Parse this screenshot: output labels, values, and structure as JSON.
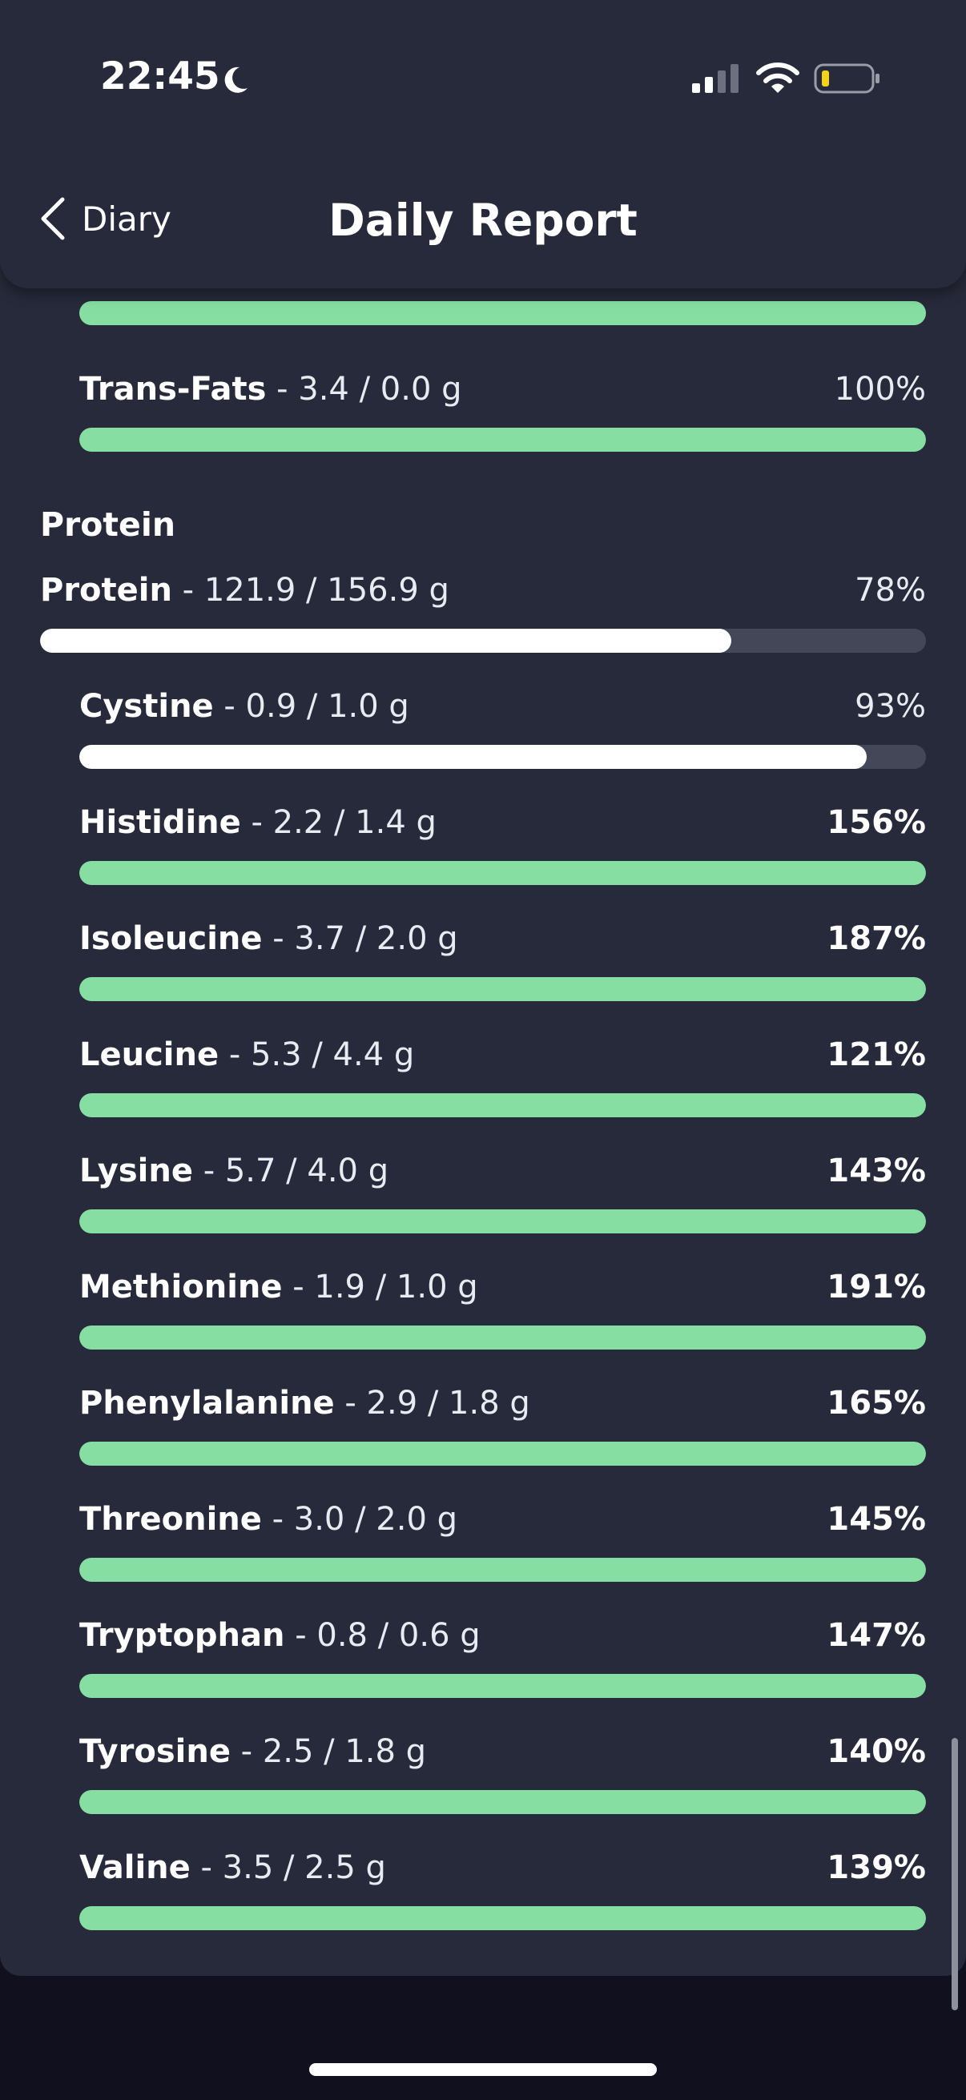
{
  "status_bar": {
    "time": "22:45",
    "moon_icon": "moon-icon",
    "signal_icon": "cellular-signal-icon",
    "wifi_icon": "wifi-icon",
    "battery_icon": "battery-low-icon"
  },
  "header": {
    "back_label": "Diary",
    "title": "Daily Report"
  },
  "colors": {
    "background": "#272a3a",
    "bar_track": "#444758",
    "bar_complete": "#87dea2",
    "bar_partial": "#ffffff"
  },
  "fats_tail": {
    "items": [
      {
        "name": "Trans-Fats",
        "amount": " - 3.4 / 0.0 g",
        "percent": "100%",
        "fill": 1.0,
        "complete": true,
        "bold_percent": false
      }
    ]
  },
  "protein_section": {
    "label": "Protein",
    "total": {
      "name": "Protein",
      "amount": " - 121.9 / 156.9 g",
      "percent": "78%",
      "fill": 0.78,
      "complete": false,
      "bold_percent": false
    },
    "items": [
      {
        "name": "Cystine",
        "amount": " - 0.9 / 1.0 g",
        "percent": "93%",
        "fill": 0.93,
        "complete": false,
        "bold_percent": false
      },
      {
        "name": "Histidine",
        "amount": " - 2.2 / 1.4 g",
        "percent": "156%",
        "fill": 1.0,
        "complete": true,
        "bold_percent": true
      },
      {
        "name": "Isoleucine",
        "amount": " - 3.7 / 2.0 g",
        "percent": "187%",
        "fill": 1.0,
        "complete": true,
        "bold_percent": true
      },
      {
        "name": "Leucine",
        "amount": " - 5.3 / 4.4 g",
        "percent": "121%",
        "fill": 1.0,
        "complete": true,
        "bold_percent": true
      },
      {
        "name": "Lysine",
        "amount": " - 5.7 / 4.0 g",
        "percent": "143%",
        "fill": 1.0,
        "complete": true,
        "bold_percent": true
      },
      {
        "name": "Methionine",
        "amount": " - 1.9 / 1.0 g",
        "percent": "191%",
        "fill": 1.0,
        "complete": true,
        "bold_percent": true
      },
      {
        "name": "Phenylalanine",
        "amount": " - 2.9 / 1.8 g",
        "percent": "165%",
        "fill": 1.0,
        "complete": true,
        "bold_percent": true
      },
      {
        "name": "Threonine",
        "amount": " - 3.0 / 2.0 g",
        "percent": "145%",
        "fill": 1.0,
        "complete": true,
        "bold_percent": true
      },
      {
        "name": "Tryptophan",
        "amount": " - 0.8 / 0.6 g",
        "percent": "147%",
        "fill": 1.0,
        "complete": true,
        "bold_percent": true
      },
      {
        "name": "Tyrosine",
        "amount": " - 2.5 / 1.8 g",
        "percent": "140%",
        "fill": 1.0,
        "complete": true,
        "bold_percent": true
      },
      {
        "name": "Valine",
        "amount": " - 3.5 / 2.5 g",
        "percent": "139%",
        "fill": 1.0,
        "complete": true,
        "bold_percent": true
      }
    ]
  }
}
